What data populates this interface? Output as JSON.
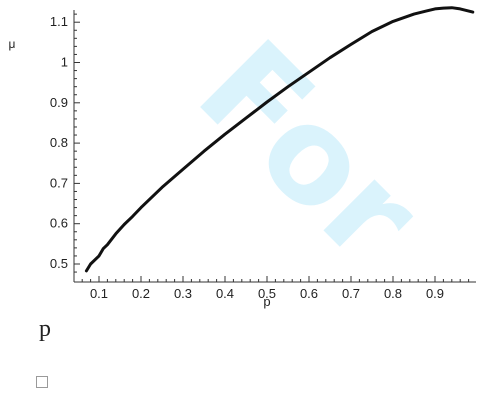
{
  "watermark": "For",
  "caption": "p",
  "colors": {
    "curve": "#111111",
    "axis": "#333333",
    "watermark": "#00aeef"
  },
  "chart_data": {
    "type": "line",
    "title": "",
    "xlabel": "p",
    "ylabel": "μ",
    "xlim": [
      0.05,
      1.0
    ],
    "ylim": [
      0.47,
      1.15
    ],
    "grid": false,
    "x_ticks": [
      0.1,
      0.2,
      0.3,
      0.4,
      0.5,
      0.6,
      0.7,
      0.8,
      0.9
    ],
    "x_tick_labels": [
      "0.1",
      "0.2",
      "0.3",
      "0.4",
      "0.5",
      "0.6",
      "0.7",
      "0.8",
      "0.9"
    ],
    "y_ticks": [
      0.5,
      0.6,
      0.7,
      0.8,
      0.9,
      1.0,
      1.1
    ],
    "y_tick_labels": [
      "0.5",
      "0.6",
      "0.7",
      "0.8",
      "0.9",
      "1",
      "1.1"
    ],
    "series": [
      {
        "x": [
          0.07,
          0.08,
          0.1,
          0.11,
          0.12,
          0.14,
          0.16,
          0.18,
          0.2,
          0.25,
          0.3,
          0.35,
          0.4,
          0.45,
          0.5,
          0.55,
          0.6,
          0.65,
          0.7,
          0.75,
          0.8,
          0.85,
          0.88,
          0.9,
          0.92,
          0.94,
          0.96,
          0.99
        ],
        "y": [
          0.483,
          0.5,
          0.52,
          0.538,
          0.548,
          0.575,
          0.598,
          0.618,
          0.64,
          0.69,
          0.735,
          0.78,
          0.822,
          0.862,
          0.902,
          0.94,
          0.976,
          1.012,
          1.045,
          1.077,
          1.102,
          1.12,
          1.128,
          1.133,
          1.135,
          1.136,
          1.133,
          1.125
        ]
      }
    ]
  }
}
